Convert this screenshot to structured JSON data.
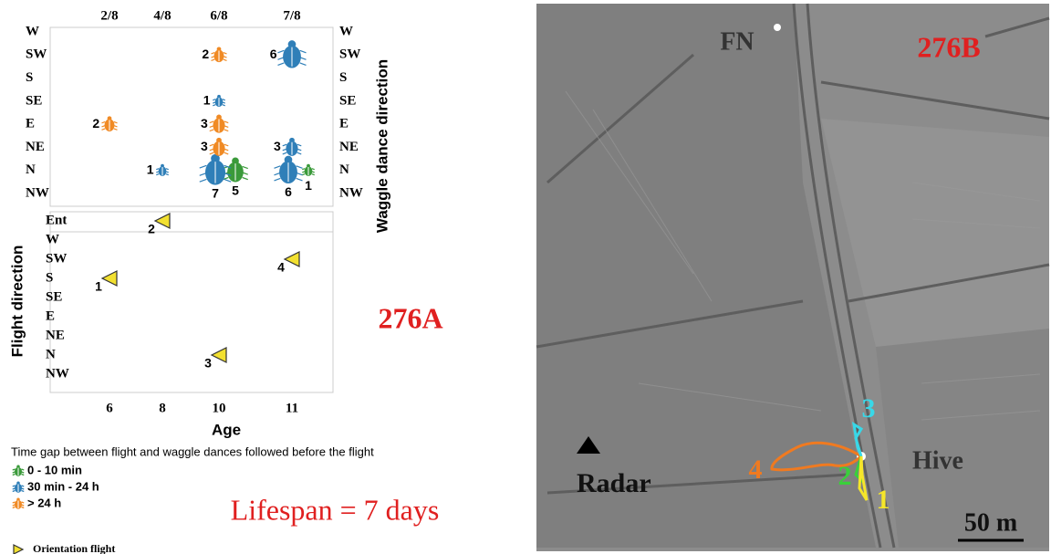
{
  "panel_a": {
    "label": "276A",
    "dates": [
      "2/8",
      "4/8",
      "6/8",
      "7/8"
    ],
    "ages": [
      6,
      8,
      10,
      11
    ],
    "x_label": "Age",
    "dance_axis_label": "Waggle dance direction",
    "dance_directions": [
      "W",
      "SW",
      "S",
      "SE",
      "E",
      "NE",
      "N",
      "NW"
    ],
    "flight_axis_label": "Flight direction",
    "flight_directions": [
      "Ent",
      "W",
      "SW",
      "S",
      "SE",
      "E",
      "NE",
      "N",
      "NW"
    ],
    "legend_title": "Time gap between flight and waggle dances followed before the flight",
    "gaps": [
      {
        "label": "0 - 10 min",
        "color": "#3a9a3a",
        "dances": [
          {
            "age": 10,
            "direction": "N",
            "count": 5
          },
          {
            "age": 11,
            "direction": "N",
            "count": 1
          }
        ]
      },
      {
        "label": "30 min - 24 h",
        "color": "#2f7fb8",
        "dances": [
          {
            "age": 8,
            "direction": "N",
            "count": 1
          },
          {
            "age": 10,
            "direction": "SE",
            "count": 1
          },
          {
            "age": 10,
            "direction": "N",
            "count": 7
          },
          {
            "age": 11,
            "direction": "SW",
            "count": 6
          },
          {
            "age": 11,
            "direction": "NE",
            "count": 3
          },
          {
            "age": 11,
            "direction": "N",
            "count": 6
          }
        ]
      },
      {
        "label": "> 24 h",
        "color": "#f08a24",
        "dances": [
          {
            "age": 6,
            "direction": "E",
            "count": 2
          },
          {
            "age": 10,
            "direction": "SW",
            "count": 2
          },
          {
            "age": 10,
            "direction": "E",
            "count": 3
          },
          {
            "age": 10,
            "direction": "NE",
            "count": 3
          }
        ]
      }
    ],
    "flight_legend": "Orientation flight",
    "flight_color": "#f2e030",
    "flights": [
      {
        "age": 8,
        "direction": "Ent",
        "number": 2
      },
      {
        "age": 6,
        "direction": "S",
        "number": 1
      },
      {
        "age": 11,
        "direction": "SW",
        "number": 4
      },
      {
        "age": 10,
        "direction": "N",
        "number": 3
      }
    ],
    "lifespan": "Lifespan = 7 days"
  },
  "panel_b": {
    "label": "276B",
    "feeder": "FN",
    "hive": "Hive",
    "radar": "Radar",
    "scale": "50 m",
    "flights": [
      {
        "number": 1,
        "color": "#f5e62a"
      },
      {
        "number": 2,
        "color": "#39d03a"
      },
      {
        "number": 3,
        "color": "#38d8e8"
      },
      {
        "number": 4,
        "color": "#f07a20"
      }
    ]
  }
}
